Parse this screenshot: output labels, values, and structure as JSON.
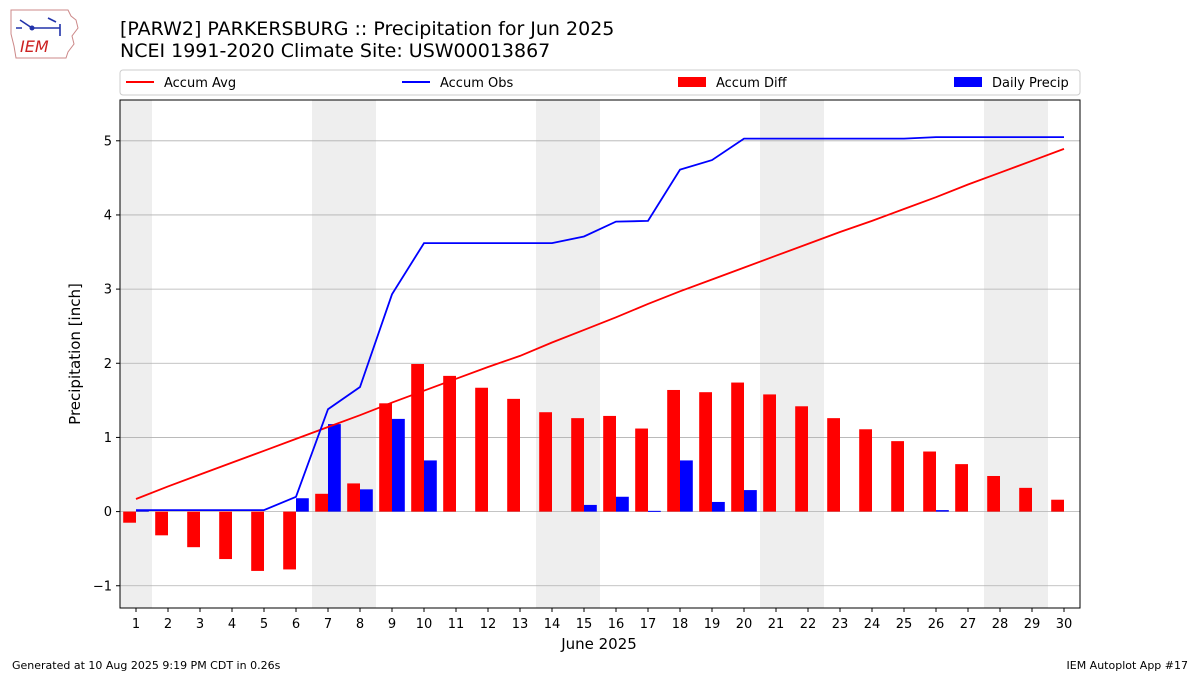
{
  "header": {
    "logo_text": "IEM",
    "title_line1": "[PARW2] PARKERSBURG :: Precipitation for Jun 2025",
    "title_line2": "NCEI 1991-2020 Climate Site: USW00013867"
  },
  "footer": {
    "generated": "Generated at 10 Aug 2025 9:19 PM CDT in 0.26s",
    "app": "IEM Autoplot App #17"
  },
  "colors": {
    "accum_avg": "#ff0000",
    "accum_obs": "#0000ff",
    "accum_diff": "#ff0000",
    "daily_precip": "#0000ff",
    "weekend_shade": "#eeeeee",
    "grid": "#b0b0b0"
  },
  "chart_data": {
    "type": "bar",
    "xlabel": "June 2025",
    "ylabel": "Precipitation [inch]",
    "xlim": [
      0.5,
      30.5
    ],
    "ylim": [
      -1.3,
      5.55
    ],
    "yticks": [
      -1,
      0,
      1,
      2,
      3,
      4,
      5
    ],
    "ytick_labels": [
      "−1",
      "0",
      "1",
      "2",
      "3",
      "4",
      "5"
    ],
    "grid": "horizontal",
    "legend_placement": "top",
    "days": [
      1,
      2,
      3,
      4,
      5,
      6,
      7,
      8,
      9,
      10,
      11,
      12,
      13,
      14,
      15,
      16,
      17,
      18,
      19,
      20,
      21,
      22,
      23,
      24,
      25,
      26,
      27,
      28,
      29,
      30
    ],
    "weekend_spans": [
      [
        0.5,
        1.5
      ],
      [
        6.5,
        8.5
      ],
      [
        13.5,
        15.5
      ],
      [
        20.5,
        22.5
      ],
      [
        27.5,
        29.5
      ]
    ],
    "series": [
      {
        "name": "Accum Avg",
        "kind": "line",
        "values": [
          0.17,
          0.34,
          0.5,
          0.66,
          0.82,
          0.98,
          1.14,
          1.3,
          1.47,
          1.63,
          1.79,
          1.95,
          2.1,
          2.28,
          2.45,
          2.62,
          2.8,
          2.97,
          3.13,
          3.29,
          3.45,
          3.61,
          3.77,
          3.92,
          4.08,
          4.24,
          4.41,
          4.57,
          4.73,
          4.89
        ]
      },
      {
        "name": "Accum Obs",
        "kind": "line",
        "values": [
          0.02,
          0.02,
          0.02,
          0.02,
          0.02,
          0.2,
          1.38,
          1.68,
          2.93,
          3.62,
          3.62,
          3.62,
          3.62,
          3.62,
          3.71,
          3.91,
          3.92,
          4.61,
          4.74,
          5.03,
          5.03,
          5.03,
          5.03,
          5.03,
          5.03,
          5.05,
          5.05,
          5.05,
          5.05,
          5.05
        ]
      },
      {
        "name": "Accum Diff",
        "kind": "bar",
        "values": [
          -0.15,
          -0.32,
          -0.48,
          -0.64,
          -0.8,
          -0.78,
          0.24,
          0.38,
          1.46,
          1.99,
          1.83,
          1.67,
          1.52,
          1.34,
          1.26,
          1.29,
          1.12,
          1.64,
          1.61,
          1.74,
          1.58,
          1.42,
          1.26,
          1.11,
          0.95,
          0.81,
          0.64,
          0.48,
          0.32,
          0.16
        ]
      },
      {
        "name": "Daily Precip",
        "kind": "bar",
        "values": [
          0.02,
          0.0,
          0.0,
          0.0,
          0.0,
          0.18,
          1.18,
          0.3,
          1.25,
          0.69,
          0.0,
          0.0,
          0.0,
          0.0,
          0.09,
          0.2,
          0.01,
          0.69,
          0.13,
          0.29,
          0.0,
          0.0,
          0.0,
          0.0,
          0.0,
          0.02,
          0.0,
          0.0,
          0.0,
          0.0
        ]
      }
    ]
  }
}
